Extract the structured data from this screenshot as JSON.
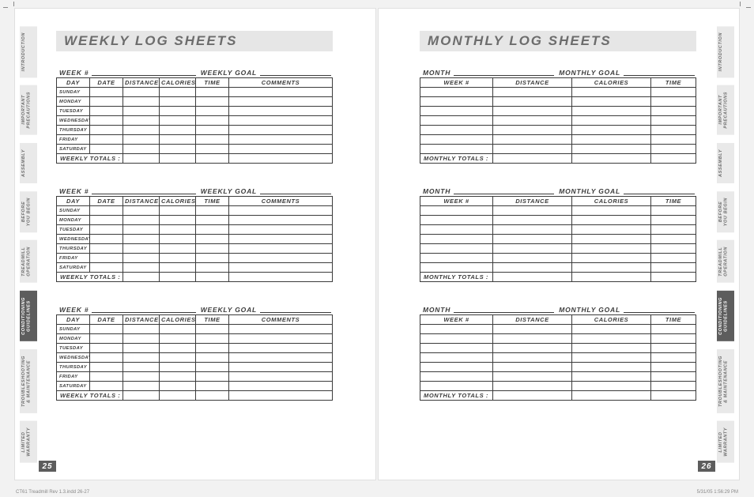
{
  "page_left": {
    "number": "25",
    "title": "WEEKLY LOG SHEETS",
    "block_label_left": "WEEK #",
    "block_label_right": "WEEKLY GOAL",
    "columns": [
      "DAY",
      "DATE",
      "DISTANCE",
      "CALORIES",
      "TIME",
      "COMMENTS"
    ],
    "days": [
      "SUNDAY",
      "MONDAY",
      "TUESDAY",
      "WEDNESDAY",
      "THURSDAY",
      "FRIDAY",
      "SATURDAY"
    ],
    "totals_label": "WEEKLY TOTALS :"
  },
  "page_right": {
    "number": "26",
    "title": "MONTHLY LOG SHEETS",
    "block_label_left": "MONTH",
    "block_label_right": "MONTHLY GOAL",
    "columns": [
      "WEEK #",
      "DISTANCE",
      "CALORIES",
      "TIME"
    ],
    "row_count": 7,
    "totals_label": "MONTHLY TOTALS :"
  },
  "tabs": [
    {
      "label": "INTRODUCTION",
      "active": false
    },
    {
      "label": "IMPORTANT\nPRECAUTIONS",
      "active": false
    },
    {
      "label": "ASSEMBLY",
      "active": false
    },
    {
      "label": "BEFORE\nYOU BEGIN",
      "active": false
    },
    {
      "label": "TREADMILL\nOPERATION",
      "active": false
    },
    {
      "label": "CONDITIONING\nGUIDELINES",
      "active": true
    },
    {
      "label": "TROUBLESHOOTING\n& MAINTENANCE",
      "active": false
    },
    {
      "label": "LIMITED\nWARRANTY",
      "active": false
    }
  ],
  "footer": {
    "left": "CT61 Treadmill Rev 1.3.indd   26-27",
    "right": "5/31/05   1:56:29 PM"
  },
  "style": {
    "bg": "#f2f2f2",
    "sheet_bg": "#ffffff",
    "tab_bg": "#e9e9e9",
    "tab_active_bg": "#5d5d5d",
    "tab_text": "#6a6a6a",
    "tab_active_text": "#ffffff",
    "title_bg": "#e6e6e6",
    "title_text": "#6c6c6c",
    "border": "#3b3b3b",
    "text": "#3b3b3b",
    "title_fontsize": 17,
    "th_fontsize": 7.5,
    "rowlbl_fontsize": 5.8,
    "tab_fontsize": 5.5
  }
}
